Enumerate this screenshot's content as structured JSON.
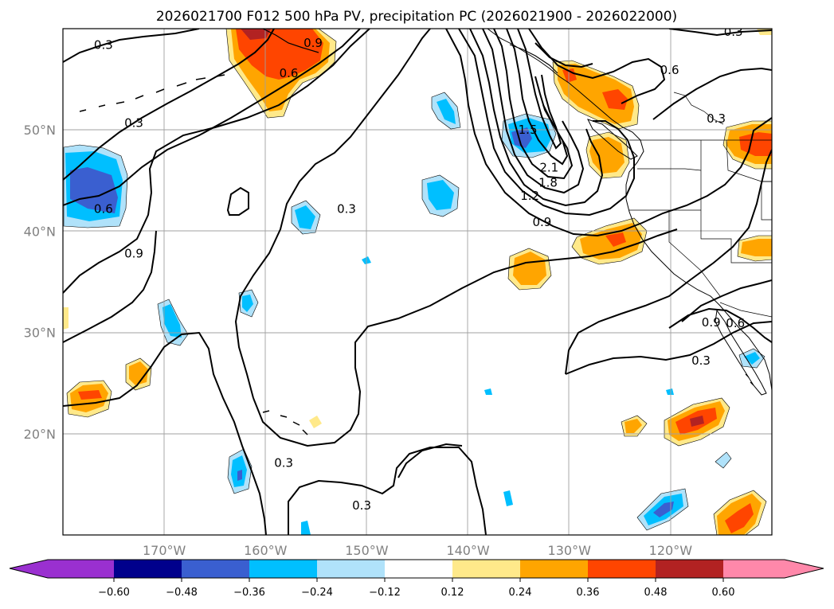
{
  "title": "2026021700 F012 500 hPa PV, precipitation PC (2026021900 - 2026022000)",
  "map": {
    "lon_range": [
      -180,
      -110
    ],
    "lat_range": [
      10,
      60
    ],
    "lon_ticks": [
      {
        "value": -170,
        "label": "170°W"
      },
      {
        "value": -160,
        "label": "160°W"
      },
      {
        "value": -150,
        "label": "150°W"
      },
      {
        "value": -140,
        "label": "140°W"
      },
      {
        "value": -130,
        "label": "130°W"
      },
      {
        "value": -120,
        "label": "120°W"
      }
    ],
    "lat_ticks": [
      {
        "value": 20,
        "label": "20°N"
      },
      {
        "value": 30,
        "label": "30°N"
      },
      {
        "value": 40,
        "label": "40°N"
      },
      {
        "value": 50,
        "label": "50°N"
      }
    ],
    "grid": true,
    "colors": {
      "grid": "#a0a0a0",
      "land_outline": "#000000",
      "contour": "#000000",
      "tick_label": "#808080"
    }
  },
  "contour_labels": [
    {
      "text": "0.3",
      "lon": -176.0,
      "lat": 58.4
    },
    {
      "text": "0.3",
      "lon": -173.0,
      "lat": 50.7
    },
    {
      "text": "0.6",
      "lon": -176.0,
      "lat": 42.2
    },
    {
      "text": "0.9",
      "lon": -173.0,
      "lat": 37.8
    },
    {
      "text": "0.3",
      "lon": -158.2,
      "lat": 17.1
    },
    {
      "text": "0.3",
      "lon": -152.0,
      "lat": 42.2
    },
    {
      "text": "0.6",
      "lon": -157.7,
      "lat": 55.6
    },
    {
      "text": "0.9",
      "lon": -155.3,
      "lat": 58.6
    },
    {
      "text": "0.3",
      "lon": -150.5,
      "lat": 12.9
    },
    {
      "text": "1.5",
      "lon": -134.1,
      "lat": 50.0
    },
    {
      "text": "2.1",
      "lon": -132.0,
      "lat": 46.3
    },
    {
      "text": "1.8",
      "lon": -132.1,
      "lat": 44.8
    },
    {
      "text": "1.2",
      "lon": -133.9,
      "lat": 43.5
    },
    {
      "text": "0.9",
      "lon": -132.7,
      "lat": 40.9
    },
    {
      "text": "0.6",
      "lon": -120.1,
      "lat": 55.9
    },
    {
      "text": "0.3",
      "lon": -115.5,
      "lat": 51.1
    },
    {
      "text": "0.9",
      "lon": -116.0,
      "lat": 31.0
    },
    {
      "text": "0.6",
      "lon": -113.6,
      "lat": 30.9
    },
    {
      "text": "0.3",
      "lon": -117.0,
      "lat": 27.2
    },
    {
      "text": "0.3",
      "lon": -113.8,
      "lat": 59.7
    }
  ],
  "colorbar": {
    "ticks": [
      "−0.60",
      "−0.48",
      "−0.36",
      "−0.24",
      "−0.12",
      "0.12",
      "0.24",
      "0.36",
      "0.48",
      "0.60"
    ],
    "bins": [
      {
        "color": "#9a30d0"
      },
      {
        "color": "#00008c"
      },
      {
        "color": "#3a5fd0"
      },
      {
        "color": "#00bfff"
      },
      {
        "color": "#b0e2fa"
      },
      {
        "color": "#ffffff"
      },
      {
        "color": "#ffe98a"
      },
      {
        "color": "#ffa500"
      },
      {
        "color": "#ff4500"
      },
      {
        "color": "#b22222"
      },
      {
        "color": "#ff88aa"
      }
    ]
  }
}
